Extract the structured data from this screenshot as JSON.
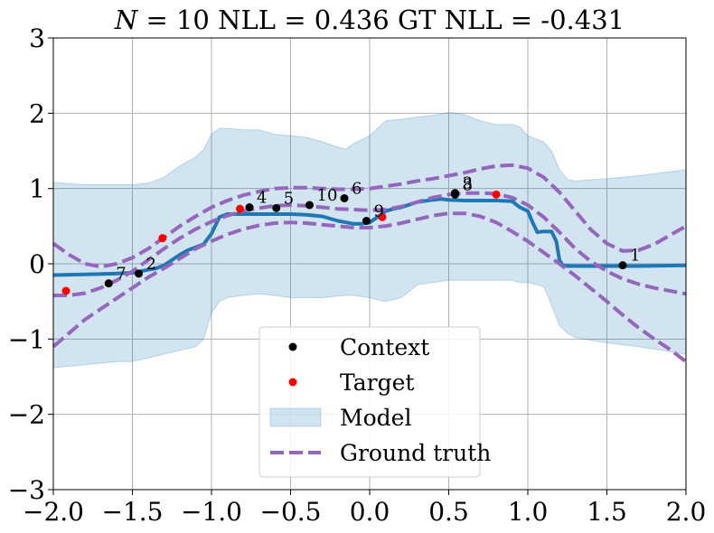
{
  "chart_data": {
    "type": "line",
    "title": {
      "n_symbol": "N",
      "rest": " = 10 NLL = 0.436 GT NLL = -0.431"
    },
    "xlim": [
      -2.0,
      2.0
    ],
    "ylim": [
      -3,
      3
    ],
    "x_ticks": [
      -2.0,
      -1.5,
      -1.0,
      -0.5,
      0.0,
      0.5,
      1.0,
      1.5,
      2.0
    ],
    "x_tick_labels": [
      "−2.0",
      "−1.5",
      "−1.0",
      "−0.5",
      "0.0",
      "0.5",
      "1.0",
      "1.5",
      "2.0"
    ],
    "y_ticks": [
      -3,
      -2,
      -1,
      0,
      1,
      2,
      3
    ],
    "y_tick_labels": [
      "−3",
      "−2",
      "−1",
      "0",
      "1",
      "2",
      "3"
    ],
    "grid": true,
    "legend": {
      "placement": "lower-center",
      "entries": [
        {
          "label": "Context",
          "kind": "point",
          "color": "#000000"
        },
        {
          "label": "Target",
          "kind": "point",
          "color": "#ff0000"
        },
        {
          "label": "Model",
          "kind": "band",
          "color": "#1f77b4"
        },
        {
          "label": "Ground truth",
          "kind": "dashed",
          "color": "#9467bd"
        }
      ]
    },
    "colors": {
      "model_mean": "#1f77b4",
      "model_band": "#1f77b4",
      "ground_truth": "#9467bd",
      "context": "#000000",
      "target": "#ff0000"
    },
    "context_points": [
      {
        "x": -1.65,
        "y": -0.26,
        "label": "7"
      },
      {
        "x": -1.46,
        "y": -0.13,
        "label": "2"
      },
      {
        "x": -0.76,
        "y": 0.75,
        "label": "4"
      },
      {
        "x": -0.59,
        "y": 0.74,
        "label": "5"
      },
      {
        "x": -0.38,
        "y": 0.78,
        "label": "10"
      },
      {
        "x": -0.16,
        "y": 0.87,
        "label": "6"
      },
      {
        "x": -0.02,
        "y": 0.57,
        "label": "9"
      },
      {
        "x": 0.54,
        "y": 0.94,
        "label": "3"
      },
      {
        "x": 0.54,
        "y": 0.92,
        "label": "8"
      },
      {
        "x": 1.6,
        "y": -0.02,
        "label": "1"
      }
    ],
    "target_points": [
      {
        "x": -1.92,
        "y": -0.36
      },
      {
        "x": -1.31,
        "y": 0.34
      },
      {
        "x": -0.82,
        "y": 0.73
      },
      {
        "x": 0.08,
        "y": 0.62
      },
      {
        "x": 0.8,
        "y": 0.92
      }
    ],
    "model_mean": {
      "x": [
        -2.0,
        -1.8,
        -1.6,
        -1.5,
        -1.45,
        -1.4,
        -1.35,
        -1.3,
        -1.25,
        -1.2,
        -1.15,
        -1.1,
        -1.05,
        -1.0,
        -0.95,
        -0.9,
        -0.85,
        -0.7,
        -0.6,
        -0.5,
        -0.4,
        -0.3,
        -0.2,
        -0.1,
        -0.05,
        0.0,
        0.05,
        0.1,
        0.15,
        0.2,
        0.3,
        0.4,
        0.45,
        0.5,
        0.6,
        0.7,
        0.8,
        0.9,
        0.95,
        1.0,
        1.03,
        1.06,
        1.1,
        1.15,
        1.18,
        1.2,
        1.22,
        1.25,
        1.3,
        1.5,
        1.7,
        2.0
      ],
      "y": [
        -0.15,
        -0.14,
        -0.13,
        -0.12,
        -0.1,
        -0.08,
        -0.06,
        -0.02,
        0.05,
        0.12,
        0.18,
        0.22,
        0.26,
        0.4,
        0.62,
        0.66,
        0.66,
        0.66,
        0.66,
        0.66,
        0.65,
        0.63,
        0.57,
        0.53,
        0.53,
        0.55,
        0.62,
        0.7,
        0.73,
        0.75,
        0.82,
        0.85,
        0.86,
        0.85,
        0.84,
        0.84,
        0.84,
        0.83,
        0.75,
        0.7,
        0.55,
        0.42,
        0.43,
        0.43,
        0.3,
        0.05,
        -0.02,
        -0.03,
        -0.03,
        -0.03,
        -0.03,
        -0.02
      ]
    },
    "model_band": {
      "x": [
        -2.0,
        -1.8,
        -1.6,
        -1.5,
        -1.4,
        -1.3,
        -1.2,
        -1.1,
        -1.05,
        -1.0,
        -0.95,
        -0.9,
        -0.8,
        -0.7,
        -0.6,
        -0.5,
        -0.4,
        -0.3,
        -0.2,
        -0.15,
        -0.1,
        0.0,
        0.1,
        0.2,
        0.3,
        0.4,
        0.5,
        0.55,
        0.6,
        0.7,
        0.8,
        0.9,
        0.95,
        1.0,
        1.1,
        1.15,
        1.2,
        1.25,
        1.3,
        1.5,
        1.7,
        2.0
      ],
      "upper": [
        1.08,
        1.05,
        1.05,
        1.05,
        1.07,
        1.15,
        1.3,
        1.42,
        1.52,
        1.72,
        1.8,
        1.8,
        1.78,
        1.78,
        1.72,
        1.7,
        1.68,
        1.62,
        1.55,
        1.52,
        1.6,
        1.7,
        1.9,
        1.92,
        1.95,
        1.97,
        2.01,
        2.0,
        1.98,
        1.9,
        1.85,
        1.85,
        1.82,
        1.7,
        1.62,
        1.5,
        1.25,
        1.12,
        1.1,
        1.13,
        1.17,
        1.25
      ],
      "lower": [
        -1.38,
        -1.34,
        -1.3,
        -1.3,
        -1.25,
        -1.2,
        -1.15,
        -1.1,
        -1.0,
        -0.65,
        -0.5,
        -0.45,
        -0.42,
        -0.4,
        -0.42,
        -0.45,
        -0.45,
        -0.45,
        -0.43,
        -0.42,
        -0.42,
        -0.45,
        -0.5,
        -0.45,
        -0.28,
        -0.25,
        -0.22,
        -0.22,
        -0.22,
        -0.22,
        -0.22,
        -0.22,
        -0.25,
        -0.25,
        -0.3,
        -0.55,
        -0.82,
        -0.92,
        -0.98,
        -1.05,
        -1.1,
        -1.2
      ]
    },
    "ground_truth": [
      {
        "name": "mean",
        "x": [
          -2.0,
          -1.9,
          -1.8,
          -1.7,
          -1.6,
          -1.5,
          -1.4,
          -1.3,
          -1.2,
          -1.1,
          -1.0,
          -0.9,
          -0.8,
          -0.7,
          -0.6,
          -0.5,
          -0.4,
          -0.3,
          -0.2,
          -0.1,
          0.0,
          0.1,
          0.2,
          0.3,
          0.4,
          0.5,
          0.6,
          0.7,
          0.8,
          0.9,
          1.0,
          1.1,
          1.2,
          1.3,
          1.4,
          1.5,
          1.6,
          1.7,
          1.8,
          1.9,
          2.0
        ],
        "y": [
          -0.42,
          -0.42,
          -0.39,
          -0.32,
          -0.22,
          -0.1,
          0.05,
          0.2,
          0.34,
          0.46,
          0.56,
          0.64,
          0.7,
          0.74,
          0.77,
          0.78,
          0.77,
          0.75,
          0.73,
          0.72,
          0.71,
          0.72,
          0.76,
          0.82,
          0.88,
          0.92,
          0.94,
          0.94,
          0.93,
          0.88,
          0.78,
          0.62,
          0.42,
          0.2,
          0.03,
          -0.1,
          -0.2,
          -0.27,
          -0.32,
          -0.36,
          -0.4
        ]
      },
      {
        "name": "upper",
        "x": [
          -2.0,
          -1.9,
          -1.8,
          -1.7,
          -1.6,
          -1.5,
          -1.4,
          -1.3,
          -1.2,
          -1.1,
          -1.0,
          -0.9,
          -0.8,
          -0.7,
          -0.6,
          -0.5,
          -0.4,
          -0.3,
          -0.2,
          -0.1,
          0.0,
          0.1,
          0.2,
          0.3,
          0.4,
          0.5,
          0.6,
          0.7,
          0.8,
          0.9,
          1.0,
          1.1,
          1.2,
          1.3,
          1.4,
          1.5,
          1.6,
          1.7,
          1.8,
          1.9,
          2.0
        ],
        "y": [
          0.27,
          0.12,
          0.0,
          -0.04,
          0.0,
          0.08,
          0.2,
          0.35,
          0.5,
          0.63,
          0.75,
          0.84,
          0.91,
          0.96,
          1.0,
          1.01,
          1.01,
          1.0,
          0.99,
          0.99,
          1.0,
          1.03,
          1.06,
          1.1,
          1.13,
          1.17,
          1.21,
          1.26,
          1.3,
          1.31,
          1.27,
          1.15,
          0.95,
          0.7,
          0.45,
          0.27,
          0.17,
          0.18,
          0.26,
          0.38,
          0.5
        ]
      },
      {
        "name": "lower",
        "x": [
          -2.0,
          -1.9,
          -1.8,
          -1.7,
          -1.6,
          -1.5,
          -1.4,
          -1.3,
          -1.2,
          -1.1,
          -1.0,
          -0.9,
          -0.8,
          -0.7,
          -0.6,
          -0.5,
          -0.4,
          -0.3,
          -0.2,
          -0.1,
          0.0,
          0.1,
          0.2,
          0.3,
          0.4,
          0.5,
          0.6,
          0.7,
          0.8,
          0.9,
          1.0,
          1.1,
          1.2,
          1.3,
          1.4,
          1.5,
          1.6,
          1.7,
          1.8,
          1.9,
          2.0
        ],
        "y": [
          -1.1,
          -0.92,
          -0.74,
          -0.6,
          -0.46,
          -0.32,
          -0.18,
          -0.06,
          0.07,
          0.2,
          0.3,
          0.39,
          0.46,
          0.51,
          0.54,
          0.55,
          0.54,
          0.52,
          0.5,
          0.48,
          0.48,
          0.5,
          0.54,
          0.59,
          0.64,
          0.67,
          0.67,
          0.63,
          0.55,
          0.43,
          0.3,
          0.15,
          0.0,
          -0.16,
          -0.33,
          -0.5,
          -0.68,
          -0.85,
          -1.0,
          -1.14,
          -1.3
        ]
      }
    ]
  }
}
